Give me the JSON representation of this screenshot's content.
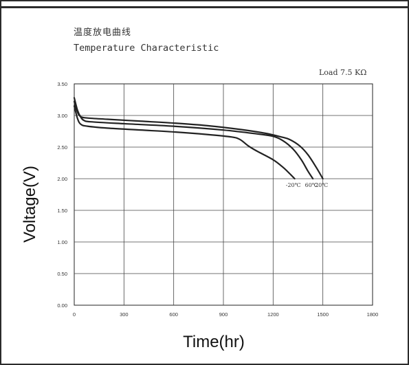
{
  "chart_data": {
    "type": "line",
    "title": "温度放电曲线",
    "subtitle": "Temperature Characteristic",
    "annotation": "Load 7.5 KΩ",
    "xlabel": "Time(hr)",
    "ylabel": "Voltage(V)",
    "xlim": [
      0,
      1800
    ],
    "ylim": [
      0.0,
      3.5
    ],
    "x_ticks": [
      "0",
      "300",
      "600",
      "900",
      "1200",
      "1500",
      "1800"
    ],
    "y_ticks": [
      "0.00",
      "0.50",
      "1.00",
      "1.50",
      "2.00",
      "2.50",
      "3.00",
      "3.50"
    ],
    "grid": true,
    "line_color": "#222222",
    "series": [
      {
        "name": "-20℃",
        "points": [
          [
            0,
            3.15
          ],
          [
            20,
            2.95
          ],
          [
            40,
            2.86
          ],
          [
            80,
            2.83
          ],
          [
            200,
            2.8
          ],
          [
            400,
            2.77
          ],
          [
            600,
            2.74
          ],
          [
            800,
            2.7
          ],
          [
            950,
            2.66
          ],
          [
            1000,
            2.62
          ],
          [
            1050,
            2.52
          ],
          [
            1100,
            2.44
          ],
          [
            1200,
            2.3
          ],
          [
            1260,
            2.18
          ],
          [
            1300,
            2.08
          ],
          [
            1330,
            2.0
          ]
        ]
      },
      {
        "name": "60℃",
        "points": [
          [
            0,
            3.28
          ],
          [
            20,
            3.08
          ],
          [
            40,
            2.97
          ],
          [
            60,
            2.92
          ],
          [
            100,
            2.9
          ],
          [
            300,
            2.87
          ],
          [
            600,
            2.83
          ],
          [
            900,
            2.77
          ],
          [
            1100,
            2.71
          ],
          [
            1200,
            2.67
          ],
          [
            1260,
            2.6
          ],
          [
            1320,
            2.47
          ],
          [
            1370,
            2.3
          ],
          [
            1410,
            2.12
          ],
          [
            1440,
            2.0
          ]
        ]
      },
      {
        "name": "20℃",
        "points": [
          [
            0,
            3.22
          ],
          [
            20,
            3.05
          ],
          [
            40,
            2.98
          ],
          [
            80,
            2.96
          ],
          [
            200,
            2.94
          ],
          [
            400,
            2.91
          ],
          [
            600,
            2.88
          ],
          [
            800,
            2.84
          ],
          [
            1000,
            2.78
          ],
          [
            1150,
            2.72
          ],
          [
            1250,
            2.66
          ],
          [
            1300,
            2.62
          ],
          [
            1360,
            2.52
          ],
          [
            1410,
            2.38
          ],
          [
            1460,
            2.18
          ],
          [
            1500,
            2.0
          ]
        ]
      }
    ]
  }
}
